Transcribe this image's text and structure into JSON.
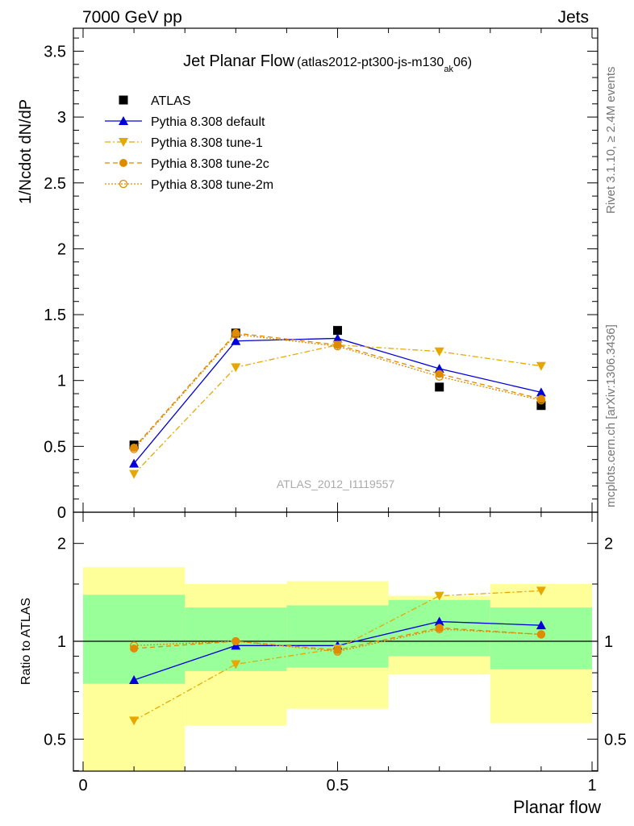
{
  "header": {
    "left": "7000 GeV pp",
    "right": "Jets"
  },
  "side_labels": {
    "rivet": "Rivet 3.1.10, ≥ 2.4M events",
    "mcplots": "mcplots.cern.ch [arXiv:1306.3436]"
  },
  "chart_data": [
    {
      "type": "line",
      "title": "Jet Planar Flow",
      "subtitle_main": "(atlas2012-pt300-js-m130",
      "subtitle_sub": "ak",
      "subtitle_end": "06)",
      "watermark": "ATLAS_2012_I1119557",
      "xlabel": "Planar flow",
      "ylabel": "1/Ncdot dN/dP",
      "xlim": [
        0,
        1
      ],
      "ylim": [
        0,
        3.7
      ],
      "y_ticks": [
        "0",
        "0.5",
        "1",
        "1.5",
        "2",
        "2.5",
        "3",
        "3.5"
      ],
      "x": [
        0.1,
        0.3,
        0.5,
        0.7,
        0.9
      ],
      "legend_position": "top-left",
      "series": [
        {
          "name": "ATLAS",
          "values": [
            0.51,
            1.36,
            1.38,
            0.95,
            0.81
          ],
          "color": "#000000",
          "marker": "square",
          "line": "none"
        },
        {
          "name": "Pythia 8.308 default",
          "values": [
            0.37,
            1.3,
            1.32,
            1.09,
            0.91
          ],
          "color": "#0000dd",
          "marker": "triangle-up",
          "line": "solid"
        },
        {
          "name": "Pythia 8.308 tune-1",
          "values": [
            0.29,
            1.1,
            1.27,
            1.22,
            1.11
          ],
          "color": "#e6a800",
          "marker": "triangle-down",
          "line": "dashdot"
        },
        {
          "name": "Pythia 8.308 tune-2c",
          "values": [
            0.49,
            1.36,
            1.27,
            1.05,
            0.86
          ],
          "color": "#e08a00",
          "marker": "circle",
          "line": "dashed"
        },
        {
          "name": "Pythia 8.308 tune-2m",
          "values": [
            0.48,
            1.35,
            1.26,
            1.03,
            0.85
          ],
          "color": "#e08a00",
          "marker": "open-circle",
          "line": "dotted"
        }
      ]
    },
    {
      "type": "line",
      "title": "",
      "xlabel": "Planar flow",
      "ylabel": "Ratio to ATLAS",
      "xlim": [
        0,
        1
      ],
      "ylim": [
        0.35,
        2.25
      ],
      "y_ticks_left": [
        "0.5",
        "1",
        "2"
      ],
      "y_ticks_right": [
        "0.5",
        "1",
        "2"
      ],
      "x_ticks": [
        "0",
        "0.5",
        "1"
      ],
      "x": [
        0.1,
        0.3,
        0.5,
        0.7,
        0.9
      ],
      "bands": {
        "bins": [
          [
            0,
            0.2
          ],
          [
            0.2,
            0.4
          ],
          [
            0.4,
            0.6
          ],
          [
            0.6,
            0.8
          ],
          [
            0.8,
            1.0
          ]
        ],
        "outer": [
          [
            0.35,
            1.69
          ],
          [
            0.55,
            1.5
          ],
          [
            0.62,
            1.53
          ],
          [
            0.79,
            1.38
          ],
          [
            0.56,
            1.5
          ]
        ],
        "inner": [
          [
            0.74,
            1.39
          ],
          [
            0.81,
            1.27
          ],
          [
            0.83,
            1.29
          ],
          [
            0.9,
            1.34
          ],
          [
            0.82,
            1.27
          ]
        ],
        "outer_color": "#ffff99",
        "inner_color": "#99ff99"
      },
      "reference_line": 1,
      "series": [
        {
          "name": "Pythia 8.308 default",
          "values": [
            0.76,
            0.97,
            0.97,
            1.15,
            1.12
          ],
          "color": "#0000dd",
          "marker": "triangle-up",
          "line": "solid"
        },
        {
          "name": "Pythia 8.308 tune-1",
          "values": [
            0.57,
            0.85,
            0.95,
            1.38,
            1.43
          ],
          "color": "#e6a800",
          "marker": "triangle-down",
          "line": "dashdot"
        },
        {
          "name": "Pythia 8.308 tune-2c",
          "values": [
            0.95,
            1.0,
            0.94,
            1.1,
            1.05
          ],
          "color": "#e08a00",
          "marker": "circle",
          "line": "dashed"
        },
        {
          "name": "Pythia 8.308 tune-2m",
          "values": [
            0.97,
            1.0,
            0.93,
            1.09,
            1.05
          ],
          "color": "#e08a00",
          "marker": "open-circle",
          "line": "dotted"
        }
      ]
    }
  ]
}
